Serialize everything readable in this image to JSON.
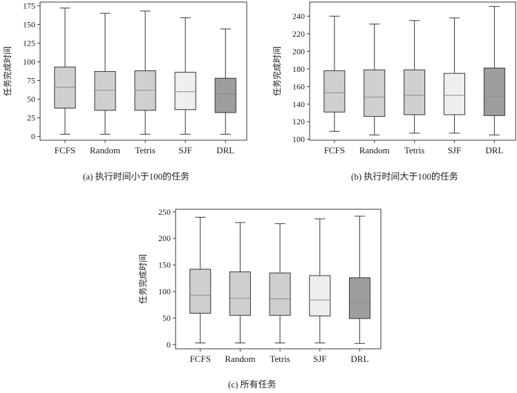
{
  "chart_data": [
    {
      "id": "a",
      "type": "box",
      "caption": "(a) 执行时间小于100的任务",
      "ylabel": "任务完成时间",
      "xlabel": "",
      "ylim": [
        -5,
        180
      ],
      "yticks": [
        0,
        25,
        50,
        75,
        100,
        125,
        150,
        175
      ],
      "grid": false,
      "categories": [
        "FCFS",
        "Random",
        "Tetris",
        "SJF",
        "DRL"
      ],
      "boxes": [
        {
          "name": "FCFS",
          "min": 3,
          "q1": 38,
          "median": 66,
          "q3": 93,
          "max": 172
        },
        {
          "name": "Random",
          "min": 3,
          "q1": 35,
          "median": 62,
          "q3": 87,
          "max": 165
        },
        {
          "name": "Tetris",
          "min": 3,
          "q1": 35,
          "median": 62,
          "q3": 88,
          "max": 168
        },
        {
          "name": "SJF",
          "min": 3,
          "q1": 36,
          "median": 60,
          "q3": 86,
          "max": 159
        },
        {
          "name": "DRL",
          "min": 3,
          "q1": 32,
          "median": 57,
          "q3": 78,
          "max": 144
        }
      ],
      "colors": [
        "#cfcfcf",
        "#cfcfcf",
        "#cfcfcf",
        "#efefef",
        "#9e9e9e"
      ]
    },
    {
      "id": "b",
      "type": "box",
      "caption": "(b) 执行时间大于100的任务",
      "ylabel": "任务完成时间",
      "xlabel": "",
      "ylim": [
        99,
        256
      ],
      "yticks": [
        100,
        120,
        140,
        160,
        180,
        200,
        220,
        240
      ],
      "grid": false,
      "categories": [
        "FCFS",
        "Random",
        "Tetris",
        "SJF",
        "DRL"
      ],
      "boxes": [
        {
          "name": "FCFS",
          "min": 109,
          "q1": 131,
          "median": 153,
          "q3": 178,
          "max": 240
        },
        {
          "name": "Random",
          "min": 105,
          "q1": 126,
          "median": 148,
          "q3": 179,
          "max": 231
        },
        {
          "name": "Tetris",
          "min": 107,
          "q1": 128,
          "median": 150,
          "q3": 179,
          "max": 235
        },
        {
          "name": "SJF",
          "min": 107,
          "q1": 128,
          "median": 150,
          "q3": 175,
          "max": 238
        },
        {
          "name": "DRL",
          "min": 105,
          "q1": 127,
          "median": 149,
          "q3": 181,
          "max": 251
        }
      ],
      "colors": [
        "#cfcfcf",
        "#cfcfcf",
        "#cfcfcf",
        "#efefef",
        "#9e9e9e"
      ]
    },
    {
      "id": "c",
      "type": "box",
      "caption": "(c) 所有任务",
      "ylabel": "任务完成时间",
      "xlabel": "",
      "ylim": [
        -8,
        255
      ],
      "yticks": [
        0,
        50,
        100,
        150,
        200,
        250
      ],
      "grid": false,
      "categories": [
        "FCFS",
        "Random",
        "Tetris",
        "SJF",
        "DRL"
      ],
      "boxes": [
        {
          "name": "FCFS",
          "min": 3,
          "q1": 59,
          "median": 93,
          "q3": 142,
          "max": 240
        },
        {
          "name": "Random",
          "min": 3,
          "q1": 55,
          "median": 87,
          "q3": 137,
          "max": 230
        },
        {
          "name": "Tetris",
          "min": 3,
          "q1": 55,
          "median": 86,
          "q3": 135,
          "max": 228
        },
        {
          "name": "SJF",
          "min": 3,
          "q1": 54,
          "median": 84,
          "q3": 130,
          "max": 237
        },
        {
          "name": "DRL",
          "min": 2,
          "q1": 49,
          "median": 79,
          "q3": 126,
          "max": 242
        }
      ],
      "colors": [
        "#cfcfcf",
        "#cfcfcf",
        "#cfcfcf",
        "#efefef",
        "#9e9e9e"
      ]
    }
  ]
}
